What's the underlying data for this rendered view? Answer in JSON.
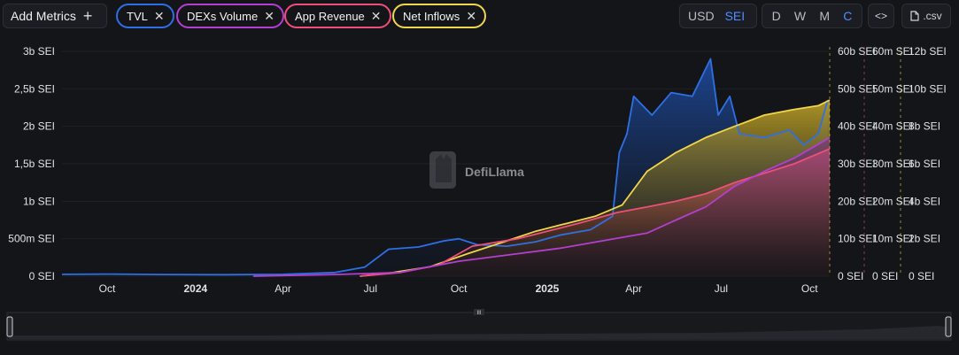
{
  "toolbar": {
    "add_metrics_label": "Add Metrics",
    "add_icon": "plus-icon",
    "metric_chips": [
      {
        "label": "TVL",
        "color": "#2f6fe4"
      },
      {
        "label": "DEXs Volume",
        "color": "#b23fd1"
      },
      {
        "label": "App Revenue",
        "color": "#ee4f7a"
      },
      {
        "label": "Net Inflows",
        "color": "#f1d54a"
      }
    ],
    "close_icon": "close-icon",
    "denomination": {
      "options": [
        "USD",
        "SEI"
      ],
      "selected": "SEI"
    },
    "granularity": {
      "options": [
        "D",
        "W",
        "M",
        "C"
      ],
      "selected": "C"
    },
    "embed_label": "<>",
    "embed_icon": "code-icon",
    "csv_label": ".csv",
    "csv_icon": "file-icon"
  },
  "watermark": {
    "text": "DefiLlama",
    "icon": "llama-logo-icon"
  },
  "chart_data": {
    "type": "line",
    "x_ticks": [
      "Oct",
      "2024",
      "Apr",
      "Jul",
      "Oct",
      "2025",
      "Apr",
      "Jul",
      "Oct"
    ],
    "x_dates": [
      "2023-10",
      "2024-01",
      "2024-04",
      "2024-07",
      "2024-10",
      "2025-01",
      "2025-04",
      "2025-07",
      "2025-10"
    ],
    "y_axes": [
      {
        "series": "TVL",
        "ticks": [
          "0 SEI",
          "500m SEI",
          "1b SEI",
          "1,5b SEI",
          "2b SEI",
          "2,5b SEI",
          "3b SEI"
        ],
        "ylim": [
          0,
          3000000000
        ]
      },
      {
        "series": "Net Inflows",
        "ticks": [
          "0 SEI",
          "10b SEI",
          "20b SEI",
          "30b SEI",
          "40b SEI",
          "50b SEI",
          "60b SEI"
        ],
        "ylim": [
          0,
          60000000000
        ]
      },
      {
        "series": "App Revenue",
        "ticks": [
          "0 SEI",
          "10m SEI",
          "20m SEI",
          "30m SEI",
          "40m SEI",
          "50m SEI",
          "60m SEI"
        ],
        "ylim": [
          0,
          60000000
        ]
      },
      {
        "series": "DEXs Volume",
        "ticks": [
          "0 SEI",
          "2b SEI",
          "4b SEI",
          "6b SEI",
          "8b SEI",
          "10b SEI",
          "12b SEI"
        ],
        "ylim": [
          0,
          12000000000
        ]
      }
    ],
    "series": [
      {
        "name": "TVL",
        "color": "#2f6fe4",
        "axis": 0,
        "points": [
          [
            "2023-08-15",
            25000000
          ],
          [
            "2023-10-01",
            28000000
          ],
          [
            "2023-12-01",
            22000000
          ],
          [
            "2024-02-01",
            20000000
          ],
          [
            "2024-04-01",
            25000000
          ],
          [
            "2024-05-25",
            50000000
          ],
          [
            "2024-06-25",
            120000000
          ],
          [
            "2024-07-20",
            360000000
          ],
          [
            "2024-08-20",
            390000000
          ],
          [
            "2024-09-15",
            470000000
          ],
          [
            "2024-10-01",
            500000000
          ],
          [
            "2024-10-20",
            420000000
          ],
          [
            "2024-11-20",
            400000000
          ],
          [
            "2024-12-20",
            460000000
          ],
          [
            "2025-01-15",
            550000000
          ],
          [
            "2025-02-15",
            620000000
          ],
          [
            "2025-03-10",
            800000000
          ],
          [
            "2025-03-17",
            1650000000
          ],
          [
            "2025-03-25",
            1900000000
          ],
          [
            "2025-04-01",
            2400000000
          ],
          [
            "2025-04-20",
            2150000000
          ],
          [
            "2025-05-10",
            2450000000
          ],
          [
            "2025-06-01",
            2400000000
          ],
          [
            "2025-06-20",
            2900000000
          ],
          [
            "2025-06-28",
            2150000000
          ],
          [
            "2025-07-10",
            2400000000
          ],
          [
            "2025-07-20",
            1900000000
          ],
          [
            "2025-08-15",
            1850000000
          ],
          [
            "2025-09-10",
            1950000000
          ],
          [
            "2025-09-25",
            1750000000
          ],
          [
            "2025-10-10",
            1900000000
          ],
          [
            "2025-10-20",
            2350000000
          ]
        ]
      },
      {
        "name": "Net Inflows",
        "color": "#f1d54a",
        "axis": 1,
        "points": [
          [
            "2024-06-20",
            0
          ],
          [
            "2024-07-25",
            1000000000
          ],
          [
            "2024-09-01",
            2500000000
          ],
          [
            "2024-10-10",
            6000000000
          ],
          [
            "2024-11-15",
            9000000000
          ],
          [
            "2024-12-20",
            12000000000
          ],
          [
            "2025-01-20",
            14000000000
          ],
          [
            "2025-02-20",
            16000000000
          ],
          [
            "2025-03-20",
            19000000000
          ],
          [
            "2025-04-15",
            28000000000
          ],
          [
            "2025-05-15",
            33000000000
          ],
          [
            "2025-06-15",
            37000000000
          ],
          [
            "2025-07-15",
            40000000000
          ],
          [
            "2025-08-15",
            43000000000
          ],
          [
            "2025-09-15",
            44500000000
          ],
          [
            "2025-10-10",
            45500000000
          ],
          [
            "2025-10-22",
            47000000000
          ]
        ]
      },
      {
        "name": "App Revenue",
        "color": "#ee4f7a",
        "axis": 2,
        "points": [
          [
            "2024-06-20",
            0
          ],
          [
            "2024-08-01",
            1000000
          ],
          [
            "2024-09-10",
            3000000
          ],
          [
            "2024-10-15",
            8000000
          ],
          [
            "2024-12-01",
            10000000
          ],
          [
            "2025-01-01",
            12000000
          ],
          [
            "2025-02-01",
            14000000
          ],
          [
            "2025-03-15",
            17000000
          ],
          [
            "2025-04-15",
            18500000
          ],
          [
            "2025-05-15",
            20000000
          ],
          [
            "2025-06-15",
            22000000
          ],
          [
            "2025-07-15",
            25000000
          ],
          [
            "2025-08-15",
            27500000
          ],
          [
            "2025-09-15",
            30000000
          ],
          [
            "2025-10-22",
            34000000
          ]
        ]
      },
      {
        "name": "DEXs Volume",
        "color": "#b23fd1",
        "axis": 3,
        "points": [
          [
            "2024-03-01",
            0
          ],
          [
            "2024-06-01",
            100000000
          ],
          [
            "2024-08-01",
            200000000
          ],
          [
            "2024-10-01",
            800000000
          ],
          [
            "2024-12-01",
            1200000000
          ],
          [
            "2025-01-15",
            1500000000
          ],
          [
            "2025-03-01",
            1900000000
          ],
          [
            "2025-04-15",
            2300000000
          ],
          [
            "2025-05-15",
            3000000000
          ],
          [
            "2025-06-15",
            3700000000
          ],
          [
            "2025-07-15",
            4800000000
          ],
          [
            "2025-08-15",
            5600000000
          ],
          [
            "2025-09-15",
            6300000000
          ],
          [
            "2025-10-22",
            7400000000
          ]
        ]
      }
    ]
  },
  "range_slider": {
    "grip_label": "III"
  }
}
